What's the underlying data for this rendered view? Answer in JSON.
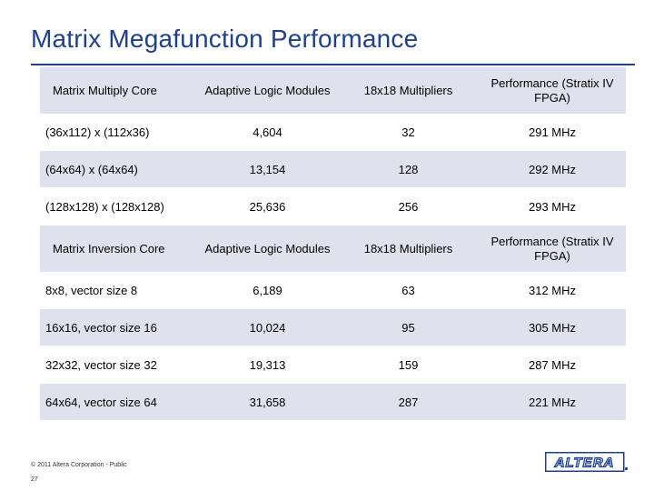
{
  "slide": {
    "title": "Matrix Megafunction Performance",
    "copyright": "© 2011 Altera Corporation - Public",
    "page_number": "27",
    "logo_text": "ALTERA."
  },
  "multiply_table": {
    "headers": [
      "Matrix Multiply Core",
      "Adaptive Logic Modules",
      "18x18 Multipliers",
      "Performance (Stratix IV FPGA)"
    ],
    "rows": [
      [
        "(36x112) x (112x36)",
        "4,604",
        "32",
        "291 MHz"
      ],
      [
        "(64x64) x (64x64)",
        "13,154",
        "128",
        "292 MHz"
      ],
      [
        "(128x128) x (128x128)",
        "25,636",
        "256",
        "293 MHz"
      ]
    ]
  },
  "inversion_table": {
    "headers": [
      "Matrix Inversion Core",
      "Adaptive Logic Modules",
      "18x18 Multipliers",
      "Performance (Stratix IV FPGA)"
    ],
    "rows": [
      [
        "8x8, vector size 8",
        "6,189",
        "63",
        "312 MHz"
      ],
      [
        "16x16, vector size 16",
        "10,024",
        "95",
        "305 MHz"
      ],
      [
        "32x32, vector size 32",
        "19,313",
        "159",
        "287 MHz"
      ],
      [
        "64x64, vector size 64",
        "31,658",
        "287",
        "221 MHz"
      ]
    ]
  },
  "colors": {
    "title": "#1f3f8f",
    "header_fill": "#dde2ec",
    "logo": "#1f3f8f"
  }
}
